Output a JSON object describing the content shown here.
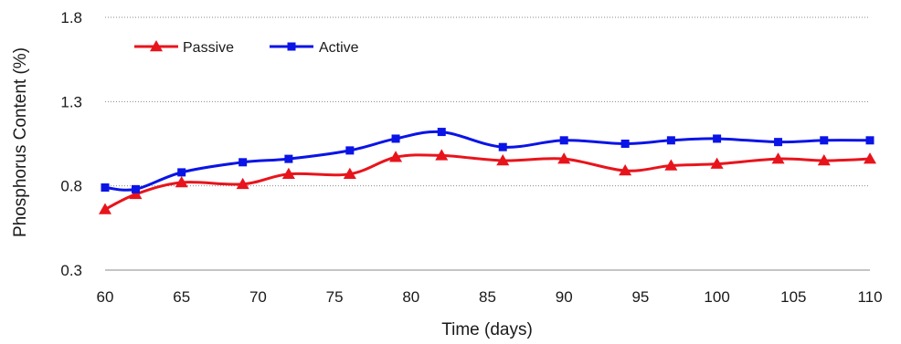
{
  "chart_data": {
    "type": "line",
    "xlabel": "Time (days)",
    "ylabel": "Phosphorus Content (%)",
    "xlim": [
      60,
      110
    ],
    "ylim": [
      0.3,
      1.8
    ],
    "xticks": [
      60,
      65,
      70,
      75,
      80,
      85,
      90,
      95,
      100,
      105,
      110
    ],
    "yticks": [
      0.3,
      0.8,
      1.3,
      1.8
    ],
    "grid": "horizontal",
    "legend_position": "top-left",
    "series": [
      {
        "name": "Passive",
        "color": "#e8141c",
        "marker": "triangle",
        "x": [
          60,
          62,
          65,
          69,
          72,
          76,
          79,
          82,
          86,
          90,
          94,
          97,
          100,
          104,
          107,
          110
        ],
        "y": [
          0.66,
          0.75,
          0.82,
          0.81,
          0.87,
          0.87,
          0.97,
          0.98,
          0.95,
          0.96,
          0.89,
          0.92,
          0.93,
          0.96,
          0.95,
          0.96
        ]
      },
      {
        "name": "Active",
        "color": "#0a14e6",
        "marker": "square",
        "x": [
          60,
          62,
          65,
          69,
          72,
          76,
          79,
          82,
          86,
          90,
          94,
          97,
          100,
          104,
          107,
          110
        ],
        "y": [
          0.79,
          0.78,
          0.88,
          0.94,
          0.96,
          1.01,
          1.08,
          1.12,
          1.03,
          1.07,
          1.05,
          1.07,
          1.08,
          1.06,
          1.07,
          1.07
        ]
      }
    ]
  }
}
